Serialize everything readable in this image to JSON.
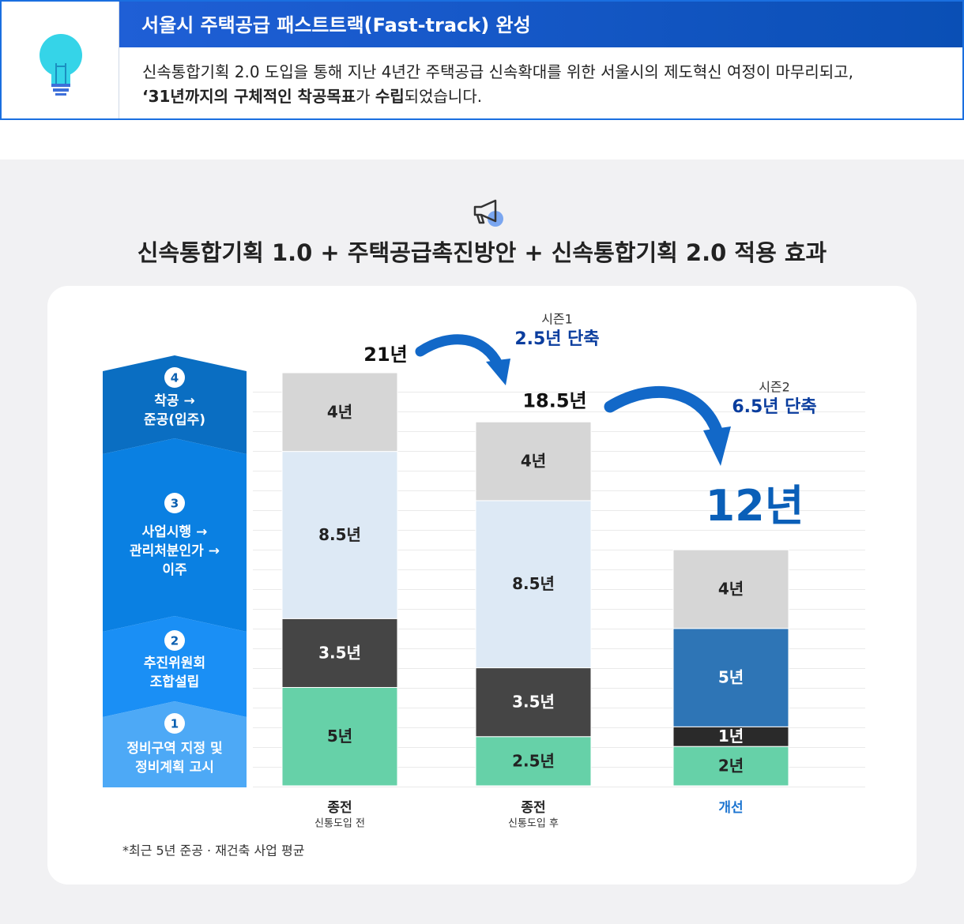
{
  "header": {
    "title": "서울시 주택공급 패스트트랙(Fast-track) 완성",
    "description": [
      [
        {
          "text": "신속통합기획 2.0 도입을 통해 지난 4년간 주택공급 신속확대를 위한 서울시의 제도혁신 여정이 마무리되고,",
          "bold": false
        }
      ],
      [
        {
          "text": "‘31년까지의 구체적인 착공목표",
          "bold": true
        },
        {
          "text": "가 ",
          "bold": false
        },
        {
          "text": "수립",
          "bold": true
        },
        {
          "text": "되었습니다.",
          "bold": false
        }
      ]
    ]
  },
  "chart_data": {
    "type": "bar",
    "stacked": true,
    "title": "신속통합기획 1.0 + 주택공급촉진방안 + 신속통합기획 2.0 적용 효과",
    "categories": [
      "종전",
      "종전",
      "개선"
    ],
    "category_subtitles": [
      "신통도입 전",
      "신통도입 후",
      null
    ],
    "category_colors": [
      "#222222",
      "#222222",
      "#1a73d0"
    ],
    "series": [
      {
        "number": "1",
        "name": "정비구역 지정 및\n정비계획 고시",
        "color": "#4da9f6",
        "colors": [
          "#66d1a8",
          "#66d1a8",
          "#66d1a8"
        ],
        "values": [
          5,
          2.5,
          2
        ],
        "value_labels": [
          "5년",
          "2.5년",
          "2년"
        ]
      },
      {
        "number": "2",
        "name": "추진위원회\n조합설립",
        "color": "#1a8ff5",
        "colors": [
          "#454545",
          "#454545",
          "#2a2a2a"
        ],
        "values": [
          3.5,
          3.5,
          1
        ],
        "value_labels": [
          "3.5년",
          "3.5년",
          "1년"
        ]
      },
      {
        "number": "3",
        "name": "사업시행 →\n관리처분인가 →\n이주",
        "color": "#0a80e2",
        "colors": [
          "#dde9f5",
          "#dde9f5",
          "#2e75b6"
        ],
        "values": [
          8.5,
          8.5,
          5
        ],
        "value_labels": [
          "8.5년",
          "8.5년",
          "5년"
        ]
      },
      {
        "number": "4",
        "name": "착공 →\n준공(입주)",
        "color": "#0a6ec2",
        "colors": [
          "#d6d6d6",
          "#d6d6d6",
          "#d6d6d6"
        ],
        "values": [
          4,
          4,
          4
        ],
        "value_labels": [
          "4년",
          "4년",
          "4년"
        ]
      }
    ],
    "totals": [
      21,
      18.5,
      12
    ],
    "total_labels": [
      "21년",
      "18.5년",
      "12년"
    ],
    "ylim": [
      0,
      21
    ],
    "annotations": [
      {
        "title": "시즌1",
        "text": "2.5년 단축"
      },
      {
        "title": "시즌2",
        "text": "6.5년 단축"
      }
    ],
    "footnote": "*최근 5년 준공 · 재건축 사업 평균"
  }
}
